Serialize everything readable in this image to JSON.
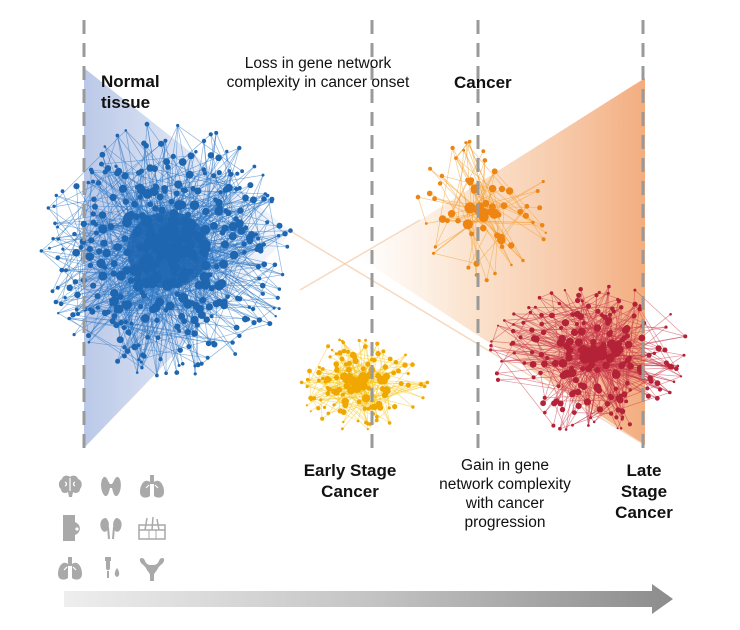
{
  "labels": {
    "normal_tissue_line1": "Normal",
    "normal_tissue_line2": "tissue",
    "loss_line1": "Loss in gene network",
    "loss_line2": "complexity in cancer onset",
    "cancer": "Cancer",
    "early_stage_line1": "Early Stage",
    "early_stage_line2": "Cancer",
    "gain_line1": "Gain in gene",
    "gain_line2": "network complexity",
    "gain_line3": "with cancer",
    "gain_line4": "progression",
    "late_stage_line1": "Late",
    "late_stage_line2": "Stage",
    "late_stage_line3": "Cancer"
  },
  "colors": {
    "normal_network": "#2f78c4",
    "normal_node": "#1f66b0",
    "early_network": "#f5c518",
    "early_node": "#f0a800",
    "cancer_network": "#f39c2a",
    "cancer_node": "#ee8412",
    "late_network": "#c8394b",
    "late_node": "#b32236",
    "dashed_line": "#9a9a9a",
    "arrow": "#8f8f8f",
    "organ_icon": "#a9a9a9"
  },
  "organ_icons": [
    "brain-icon",
    "thyroid-icon",
    "lungs-icon",
    "breast-icon",
    "kidneys-icon",
    "skin-icon",
    "lungs-icon",
    "prostate-icon",
    "uterus-icon"
  ]
}
